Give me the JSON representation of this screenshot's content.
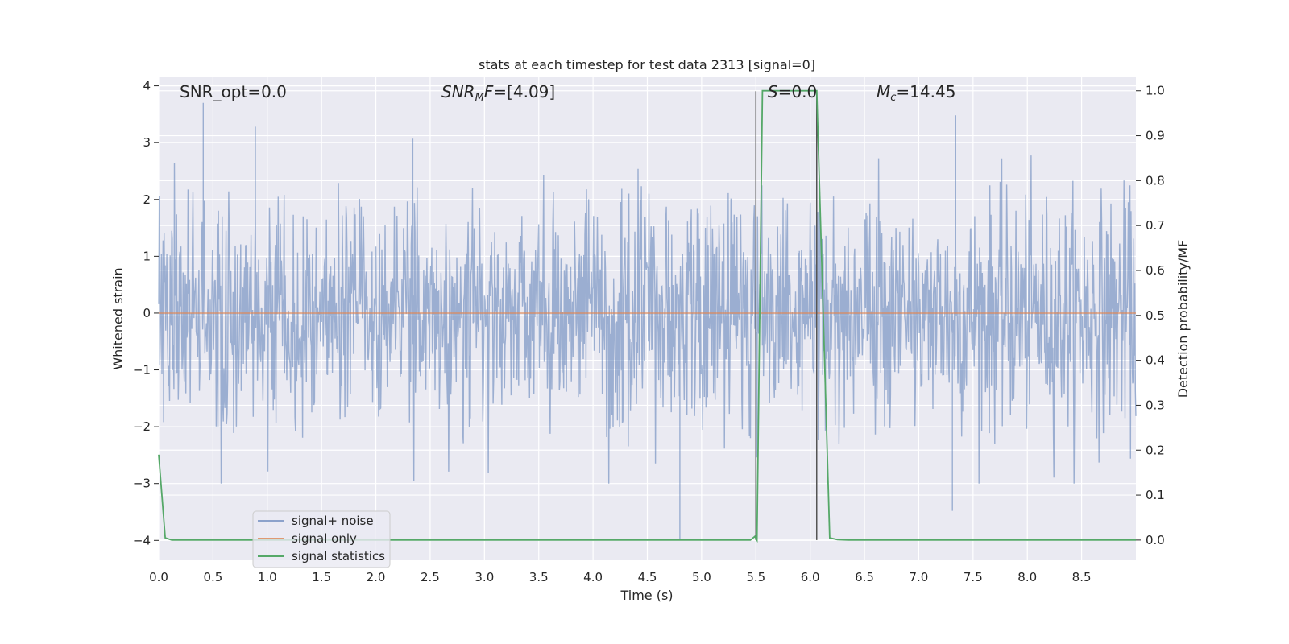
{
  "chart_data": {
    "type": "line",
    "title": "stats at each timestep for test data 2313 [signal=0]",
    "xlabel": "Time (s)",
    "ylabel_left": "Whitened strain",
    "ylabel_right": "Detection probability/MF",
    "xlim": [
      0.0,
      9.0
    ],
    "ylim_left": [
      -4.35,
      4.15
    ],
    "ylim_right": [
      -0.045,
      1.03
    ],
    "x_ticks": [
      "0.0",
      "0.5",
      "1.0",
      "1.5",
      "2.0",
      "2.5",
      "3.0",
      "3.5",
      "4.0",
      "4.5",
      "5.0",
      "5.5",
      "6.0",
      "6.5",
      "7.0",
      "7.5",
      "8.0",
      "8.5"
    ],
    "y_ticks_left": [
      "−4",
      "−3",
      "−2",
      "−1",
      "0",
      "1",
      "2",
      "3",
      "4"
    ],
    "y_ticks_right": [
      "0.0",
      "0.1",
      "0.2",
      "0.3",
      "0.4",
      "0.5",
      "0.6",
      "0.7",
      "0.8",
      "0.9",
      "1.0"
    ],
    "grid": true,
    "legend_position": "lower-left",
    "background": "#eaeaf2",
    "annotations": {
      "snr_opt": "SNR_opt=0.0",
      "snr_mf_var": "SNR",
      "snr_mf_sub": "M",
      "snr_mf_mid": "F",
      "snr_mf_value": "=[4.09]",
      "s_var": "S",
      "s_value": "=0.0",
      "mc_var": "M",
      "mc_sub": "c",
      "mc_value": "=14.45"
    },
    "series": [
      {
        "name": "signal+ noise",
        "color": "#4c72b0",
        "axis": "left",
        "description_values": "white gaussian-like noise, envelope roughly ±2.2 with spikes up to 3.7 and down to -4.0",
        "notable_spikes": [
          {
            "x": 0.41,
            "y": 3.7
          },
          {
            "x": 0.89,
            "y": 3.28
          },
          {
            "x": 2.34,
            "y": 3.07
          },
          {
            "x": 4.8,
            "y": -4.0
          },
          {
            "x": 7.34,
            "y": 3.48
          },
          {
            "x": 7.31,
            "y": -3.48
          }
        ]
      },
      {
        "name": "signal only",
        "color": "#dd8452",
        "axis": "left",
        "x": [
          0.0,
          9.0
        ],
        "y": [
          0.0,
          0.0
        ]
      },
      {
        "name": "signal statistics",
        "color": "#55a868",
        "axis": "right",
        "x": [
          0.0,
          0.06,
          0.12,
          5.45,
          5.49,
          5.51,
          5.56,
          6.06,
          6.18,
          6.25,
          6.35,
          9.0
        ],
        "y": [
          0.19,
          0.005,
          0.0,
          0.0,
          0.008,
          0.0,
          1.0,
          1.0,
          0.005,
          0.001,
          0.0,
          0.0
        ]
      }
    ],
    "vertical_markers": [
      {
        "x": 5.5,
        "y_top": 0.999,
        "color": "#555555"
      },
      {
        "x": 6.06,
        "y_top": 0.999,
        "color": "#555555"
      }
    ]
  }
}
